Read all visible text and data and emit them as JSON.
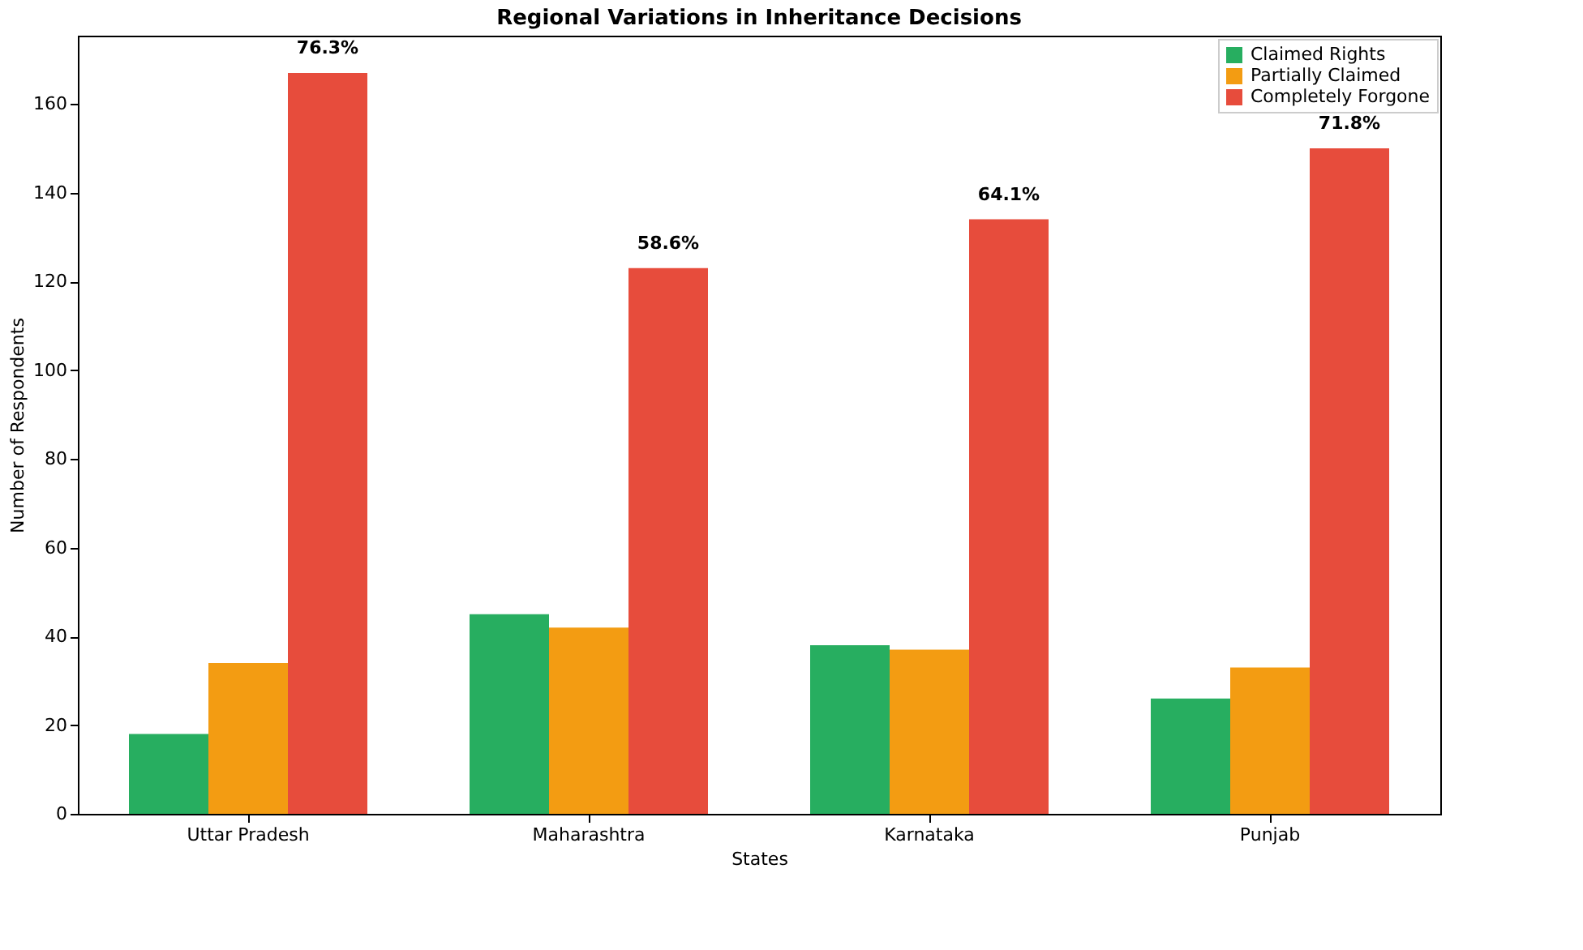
{
  "chart_data": {
    "type": "bar",
    "title": "Regional Variations in Inheritance Decisions",
    "xlabel": "States",
    "ylabel": "Number of Respondents",
    "categories": [
      "Uttar Pradesh",
      "Maharashtra",
      "Karnataka",
      "Punjab"
    ],
    "series": [
      {
        "name": "Claimed Rights",
        "color": "#27ae60",
        "values": [
          18,
          45,
          38,
          26
        ]
      },
      {
        "name": "Partially Claimed",
        "color": "#f39c12",
        "values": [
          34,
          42,
          37,
          33
        ]
      },
      {
        "name": "Completely Forgone",
        "color": "#e74c3c",
        "values": [
          167,
          123,
          134,
          150
        ]
      }
    ],
    "ylim": [
      0,
      175.4
    ],
    "yticks": [
      0,
      20,
      40,
      60,
      80,
      100,
      120,
      140,
      160
    ],
    "grid": false,
    "legend": "top right",
    "annotations": [
      "76.3%",
      "58.6%",
      "64.1%",
      "71.8%"
    ]
  }
}
